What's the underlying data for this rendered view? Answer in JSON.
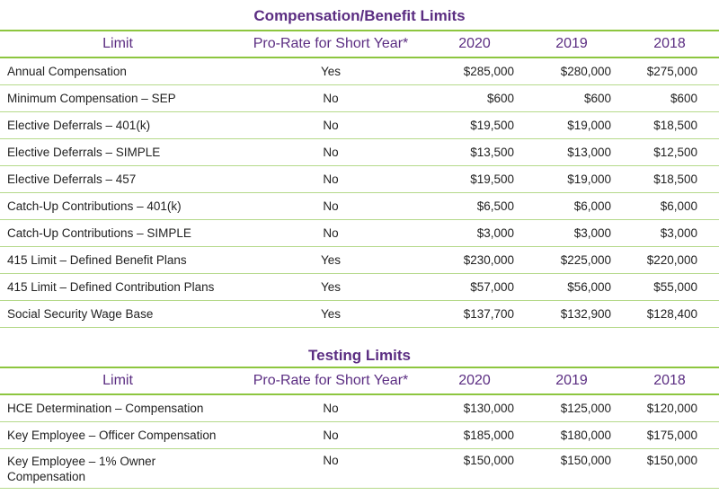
{
  "headers": {
    "limit": "Limit",
    "prorate": "Pro-Rate for Short Year*",
    "y1": "2020",
    "y2": "2019",
    "y3": "2018"
  },
  "compensation": {
    "title": "Compensation/Benefit Limits",
    "rows": [
      {
        "limit": "Annual Compensation",
        "prorate": "Yes",
        "y1": "$285,000",
        "y2": "$280,000",
        "y3": "$275,000"
      },
      {
        "limit": "Minimum Compensation – SEP",
        "prorate": "No",
        "y1": "$600",
        "y2": "$600",
        "y3": "$600"
      },
      {
        "limit": "Elective Deferrals – 401(k)",
        "prorate": "No",
        "y1": "$19,500",
        "y2": "$19,000",
        "y3": "$18,500"
      },
      {
        "limit": "Elective Deferrals – SIMPLE",
        "prorate": "No",
        "y1": "$13,500",
        "y2": "$13,000",
        "y3": "$12,500"
      },
      {
        "limit": "Elective Deferrals – 457",
        "prorate": "No",
        "y1": "$19,500",
        "y2": "$19,000",
        "y3": "$18,500"
      },
      {
        "limit": "Catch-Up Contributions – 401(k)",
        "prorate": "No",
        "y1": "$6,500",
        "y2": "$6,000",
        "y3": "$6,000"
      },
      {
        "limit": "Catch-Up Contributions – SIMPLE",
        "prorate": "No",
        "y1": "$3,000",
        "y2": "$3,000",
        "y3": "$3,000"
      },
      {
        "limit": "415 Limit – Defined Benefit Plans",
        "prorate": "Yes",
        "y1": "$230,000",
        "y2": "$225,000",
        "y3": "$220,000"
      },
      {
        "limit": "415 Limit – Defined Contribution Plans",
        "prorate": "Yes",
        "y1": "$57,000",
        "y2": "$56,000",
        "y3": "$55,000"
      },
      {
        "limit": "Social Security Wage Base",
        "prorate": "Yes",
        "y1": "$137,700",
        "y2": "$132,900",
        "y3": "$128,400"
      }
    ]
  },
  "testing": {
    "title": "Testing Limits",
    "rows": [
      {
        "limit": "HCE Determination – Compensation",
        "prorate": "No",
        "y1": "$130,000",
        "y2": "$125,000",
        "y3": "$120,000"
      },
      {
        "limit": "Key Employee – Officer Compensation",
        "prorate": "No",
        "y1": "$185,000",
        "y2": "$180,000",
        "y3": "$175,000"
      },
      {
        "limit": "Key Employee – 1% Owner Compensation",
        "prorate": "No",
        "y1": "$150,000",
        "y2": "$150,000",
        "y3": "$150,000"
      }
    ]
  }
}
